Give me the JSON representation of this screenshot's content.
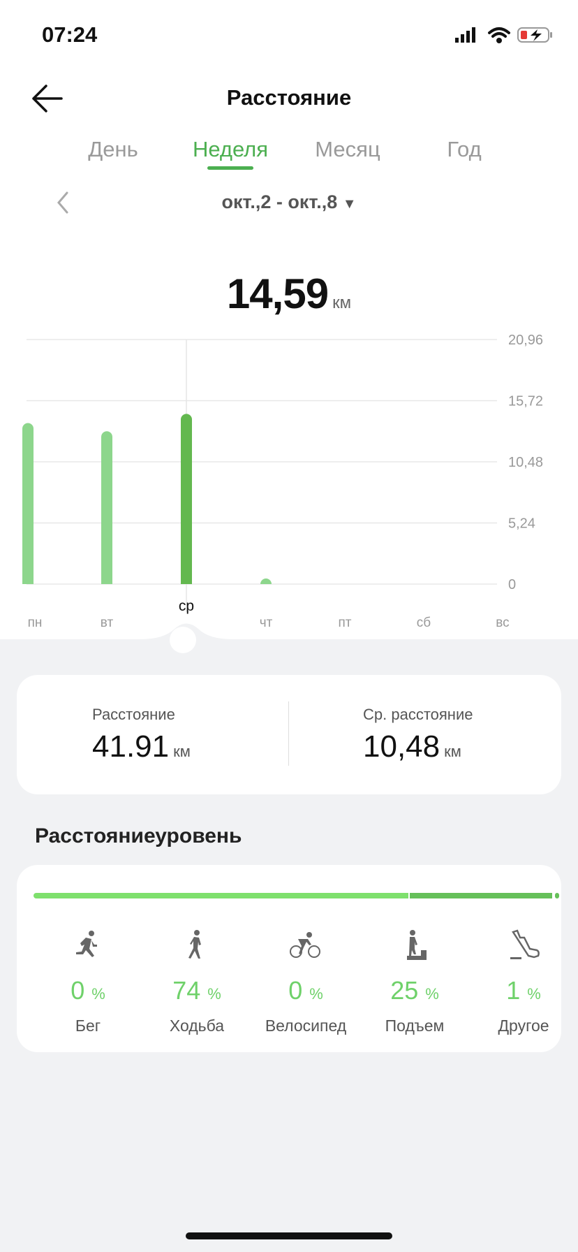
{
  "status": {
    "time": "07:24"
  },
  "header": {
    "title": "Расстояние"
  },
  "tabs": [
    {
      "label": "День"
    },
    {
      "label": "Неделя",
      "active": true
    },
    {
      "label": "Месяц"
    },
    {
      "label": "Год"
    }
  ],
  "date_range": "окт.,2 - окт.,8",
  "selected": {
    "value": "14,59",
    "unit": "км"
  },
  "chart_data": {
    "type": "bar",
    "categories": [
      "пн",
      "вт",
      "ср",
      "чт",
      "пт",
      "сб",
      "вс"
    ],
    "values": [
      13.8,
      13.1,
      14.59,
      0.42,
      0,
      0,
      0
    ],
    "selected_index": 2,
    "yticks": [
      "0",
      "5,24",
      "10,48",
      "15,72",
      "20,96"
    ],
    "ylim": [
      0,
      20.96
    ],
    "grid": true,
    "colors": {
      "bar": "#8dd68c",
      "selected": "#63b84f"
    }
  },
  "summary": {
    "distance_label": "Расстояние",
    "distance_value": "41.91",
    "distance_unit": "км",
    "avg_label": "Ср. расстояние",
    "avg_value": "10,48",
    "avg_unit": "км"
  },
  "level": {
    "title": "Расстояниеуровень",
    "activities": [
      {
        "icon": "running-icon",
        "pct": "0",
        "label": "Бег"
      },
      {
        "icon": "walking-icon",
        "pct": "74",
        "label": "Ходьба"
      },
      {
        "icon": "cycling-icon",
        "pct": "0",
        "label": "Велосипед"
      },
      {
        "icon": "climbing-icon",
        "pct": "25",
        "label": "Подъем"
      },
      {
        "icon": "shoe-icon",
        "pct": "1",
        "label": "Другое"
      }
    ],
    "percent_sign": "%"
  }
}
